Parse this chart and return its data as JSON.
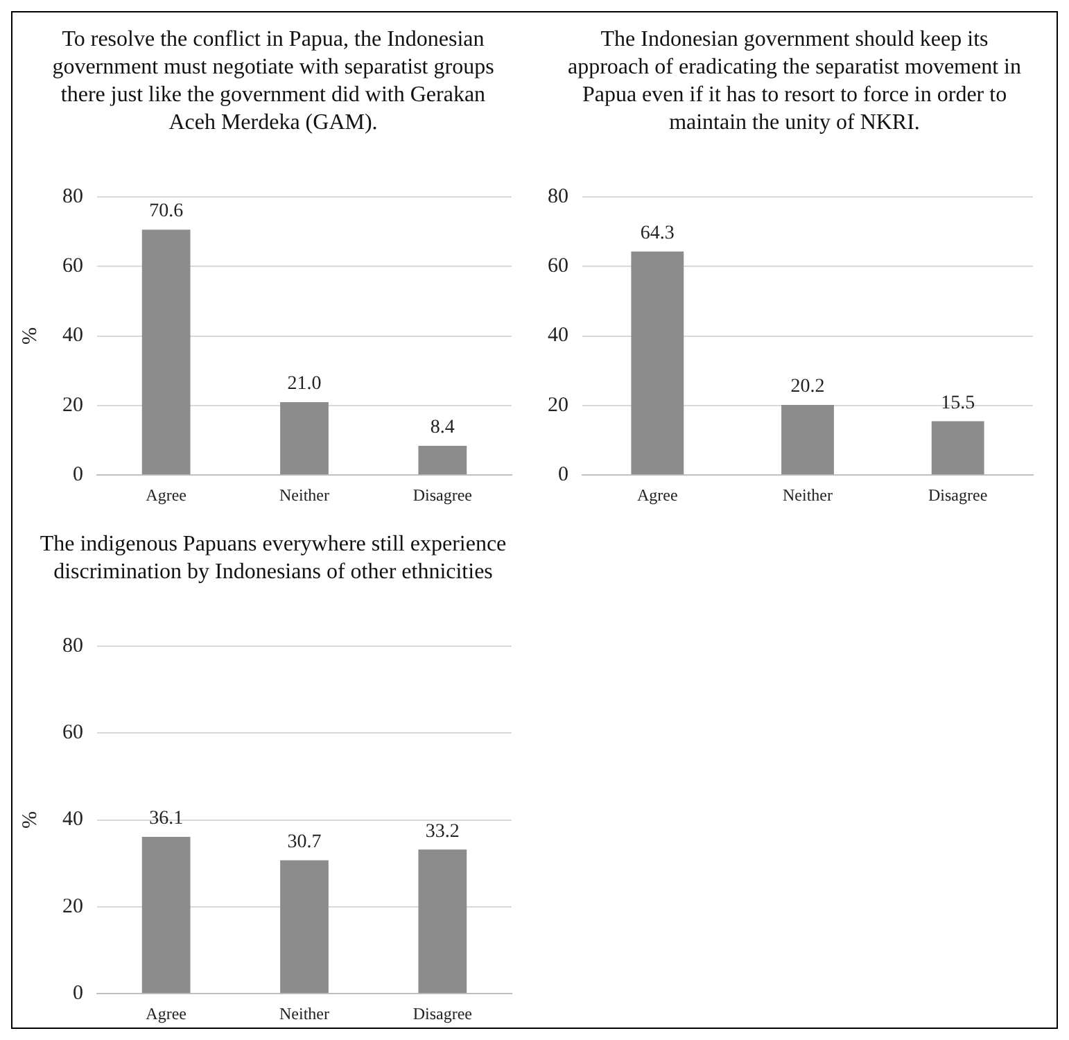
{
  "chart_data": [
    {
      "type": "bar",
      "title": "To resolve the conflict in Papua, the Indonesian government must negotiate with separatist groups there just like the government did with Gerakan Aceh Merdeka (GAM).",
      "ylabel": "%",
      "categories": [
        "Agree",
        "Neither",
        "Disagree"
      ],
      "values": [
        70.6,
        21.0,
        8.4
      ],
      "value_labels": [
        "70.6",
        "21.0",
        "8.4"
      ],
      "color": "#8c8c8c",
      "ylim": [
        0,
        80
      ],
      "yticks": [
        0,
        20,
        40,
        60,
        80
      ],
      "grid": "y"
    },
    {
      "type": "bar",
      "title": "The Indonesian government should keep its approach of eradicating the separatist movement in Papua even if it has to resort to force in order to maintain the unity of NKRI.",
      "categories": [
        "Agree",
        "Neither",
        "Disagree"
      ],
      "values": [
        64.3,
        20.2,
        15.5
      ],
      "value_labels": [
        "64.3",
        "20.2",
        "15.5"
      ],
      "color": "#8c8c8c",
      "ylim": [
        0,
        80
      ],
      "yticks": [
        0,
        20,
        40,
        60,
        80
      ],
      "grid": "y"
    },
    {
      "type": "bar",
      "title": "The indigenous Papuans everywhere still experience discrimination by Indonesians of other ethnicities",
      "ylabel": "%",
      "categories": [
        "Agree",
        "Neither",
        "Disagree"
      ],
      "values": [
        36.1,
        30.7,
        33.2
      ],
      "value_labels": [
        "36.1",
        "30.7",
        "33.2"
      ],
      "color": "#8c8c8c",
      "ylim": [
        0,
        80
      ],
      "yticks": [
        0,
        20,
        40,
        60,
        80
      ],
      "grid": "y"
    }
  ]
}
